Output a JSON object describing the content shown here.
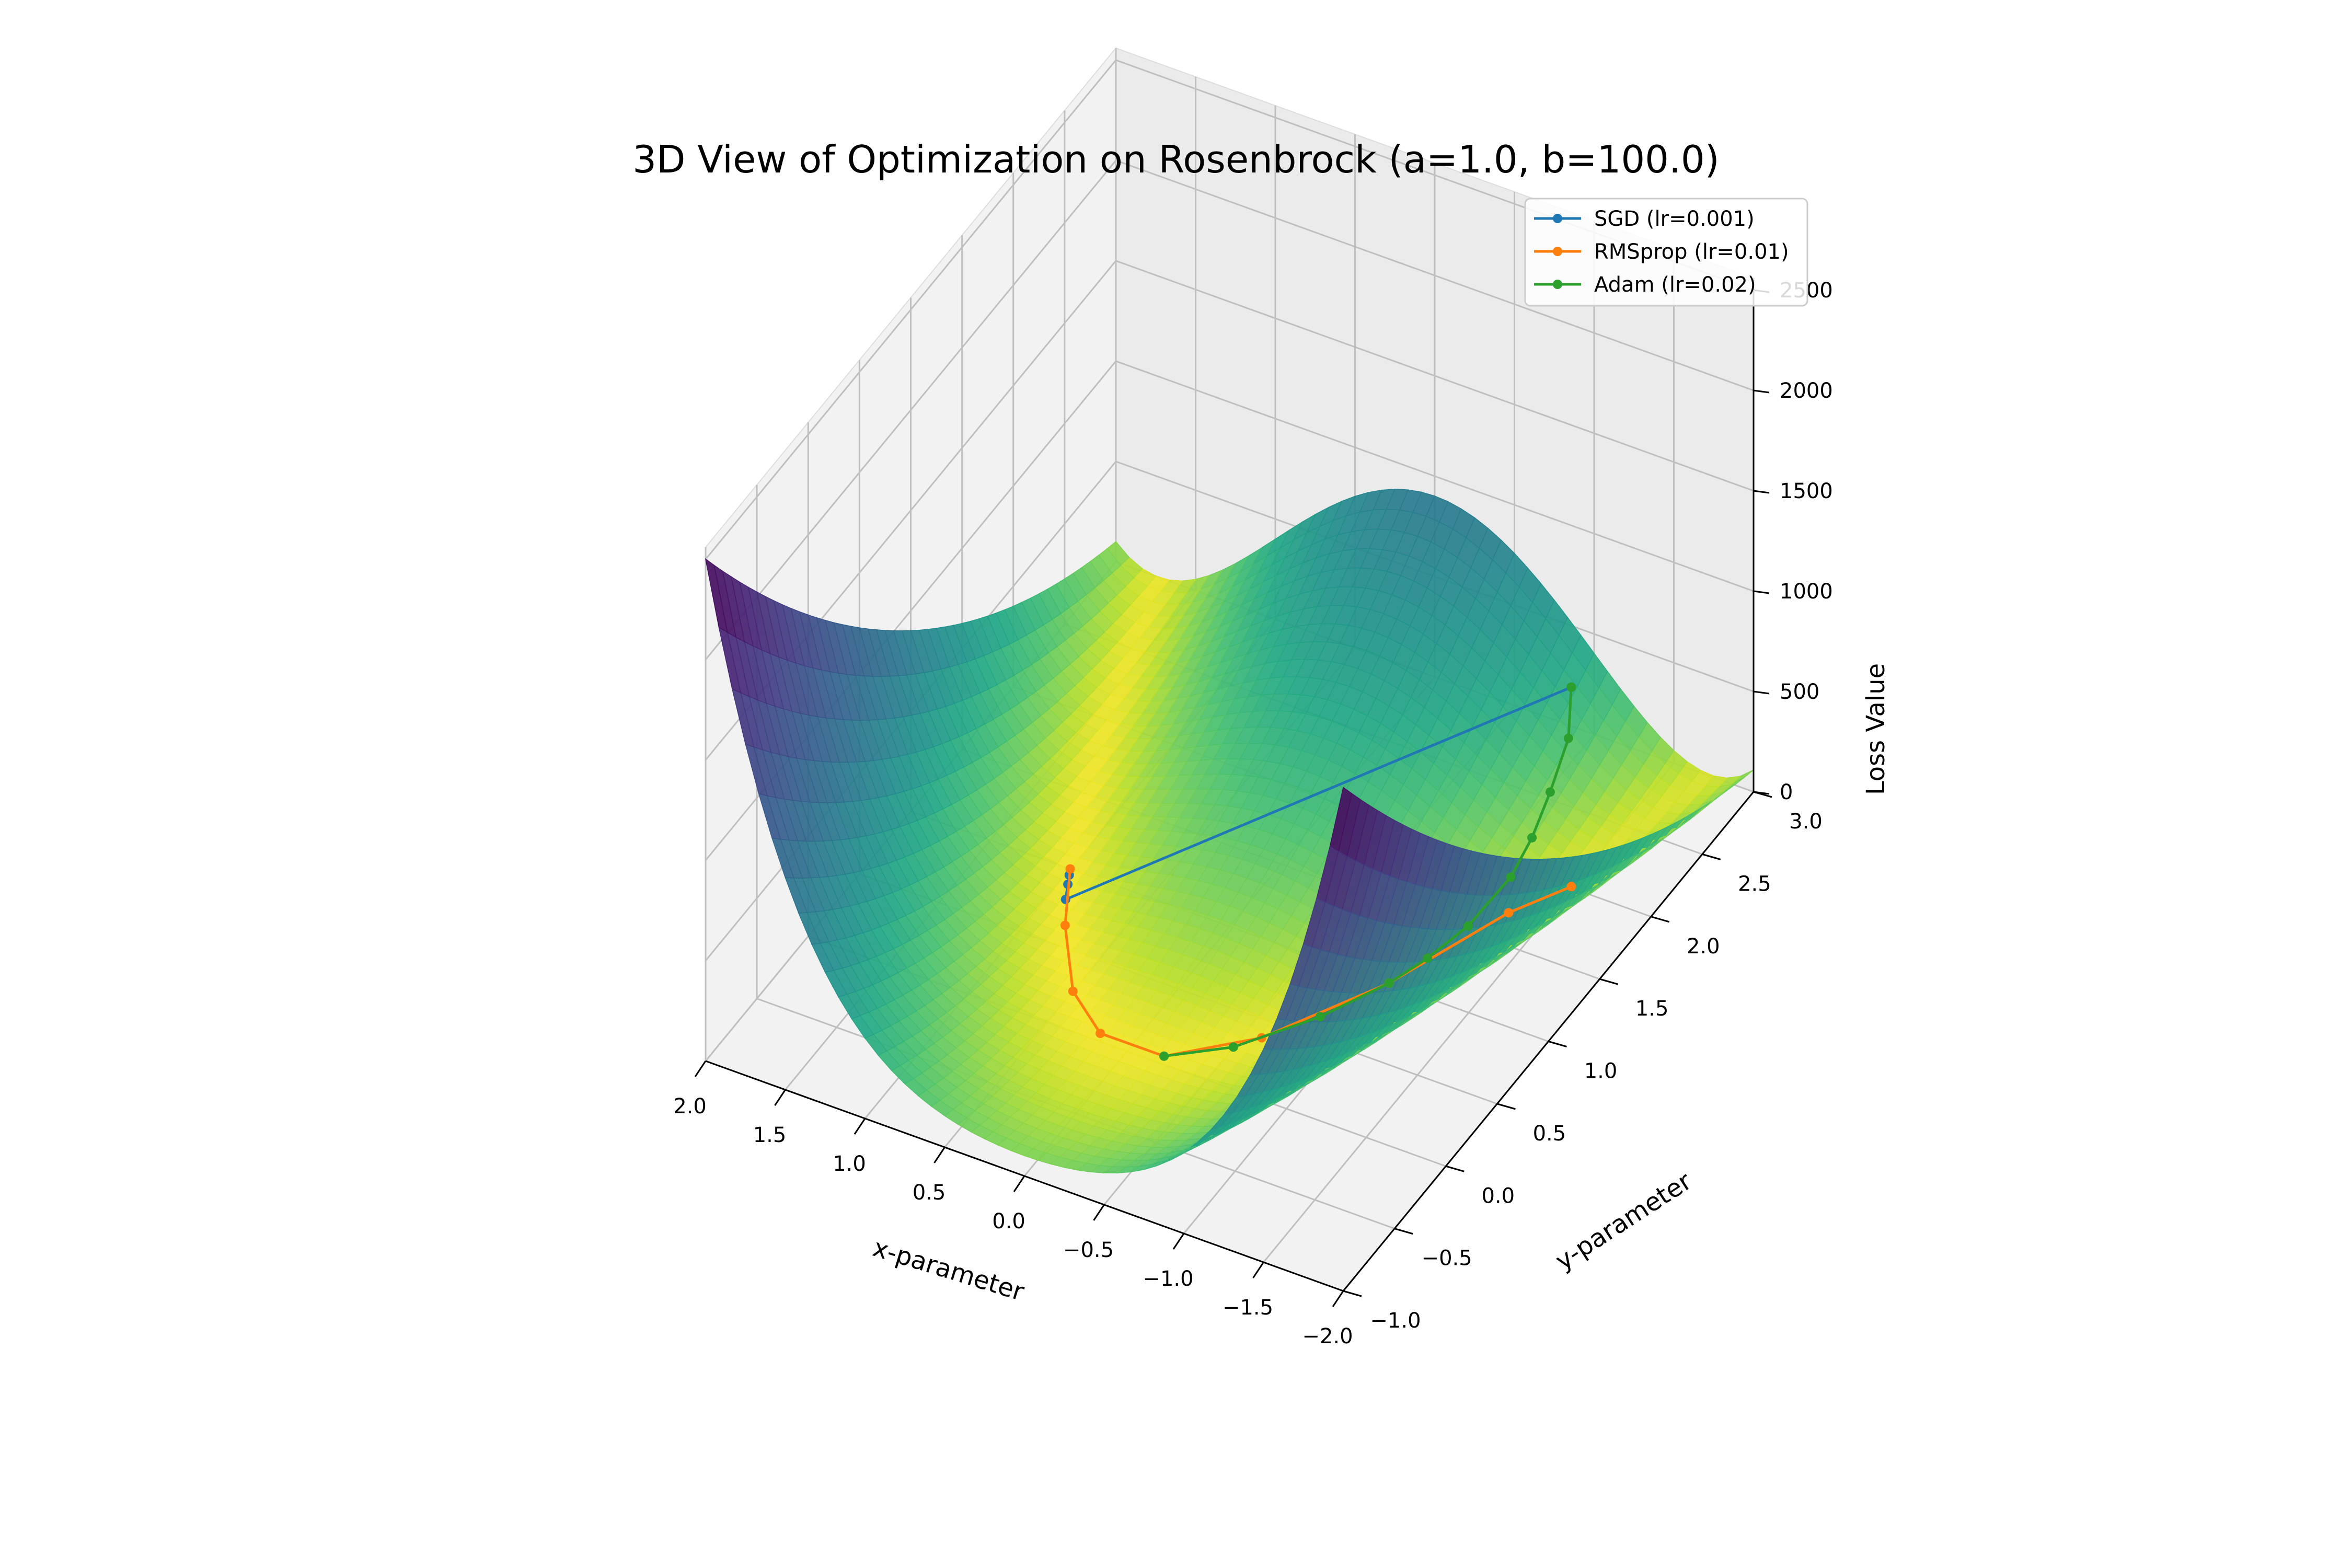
{
  "chart_data": {
    "type": "surface3d",
    "title": "3D View of Optimization on Rosenbrock (a=1.0, b=100.0)",
    "xlabel": "x-parameter",
    "ylabel": "y-parameter",
    "zlabel": "Loss Value",
    "xlim": [
      -2.0,
      2.0
    ],
    "ylim": [
      -1.0,
      3.0
    ],
    "zlim": [
      0,
      2500
    ],
    "x_ticks": [
      "2.0",
      "1.5",
      "1.0",
      "0.5",
      "0.0",
      "−0.5",
      "−1.0",
      "−1.5",
      "−2.0"
    ],
    "y_ticks": [
      "−1.0",
      "−0.5",
      "0.0",
      "0.5",
      "1.0",
      "1.5",
      "2.0",
      "2.5",
      "3.0"
    ],
    "z_ticks": [
      "0",
      "500",
      "1000",
      "1500",
      "2000",
      "2500"
    ],
    "grid": true,
    "legend_position": "top-right",
    "colormap": "viridis",
    "series": [
      {
        "name": "SGD (lr=0.001)",
        "color": "#1f77b4",
        "x": [
          -1.5,
          0.9,
          0.95,
          0.98
        ],
        "y": [
          2.0,
          0.8,
          0.9,
          0.96
        ],
        "z": [
          1000,
          1,
          0.1,
          0.01
        ]
      },
      {
        "name": "RMSprop (lr=0.01)",
        "color": "#ff7f0e",
        "x": [
          -1.5,
          -1.3,
          -1.0,
          -0.6,
          -0.2,
          0.2,
          0.5,
          0.8,
          1.0
        ],
        "y": [
          2.0,
          1.7,
          1.0,
          0.38,
          0.05,
          0.05,
          0.25,
          0.64,
          1.0
        ],
        "z": [
          6.5,
          5.3,
          4.0,
          2.6,
          1.5,
          0.7,
          0.25,
          0.05,
          0.0
        ]
      },
      {
        "name": "Adam (lr=0.02)",
        "color": "#2ca02c",
        "x": [
          -1.5,
          -1.45,
          -1.4,
          -1.35,
          -1.3,
          -1.2,
          -1.1,
          -1.0,
          -0.8,
          -0.5,
          -0.2
        ],
        "y": [
          2.0,
          2.05,
          1.95,
          1.85,
          1.72,
          1.46,
          1.22,
          1.0,
          0.64,
          0.26,
          0.05
        ],
        "z": [
          1000,
          700,
          480,
          300,
          170,
          60,
          20,
          4.0,
          3.3,
          2.3,
          1.5
        ]
      }
    ]
  }
}
